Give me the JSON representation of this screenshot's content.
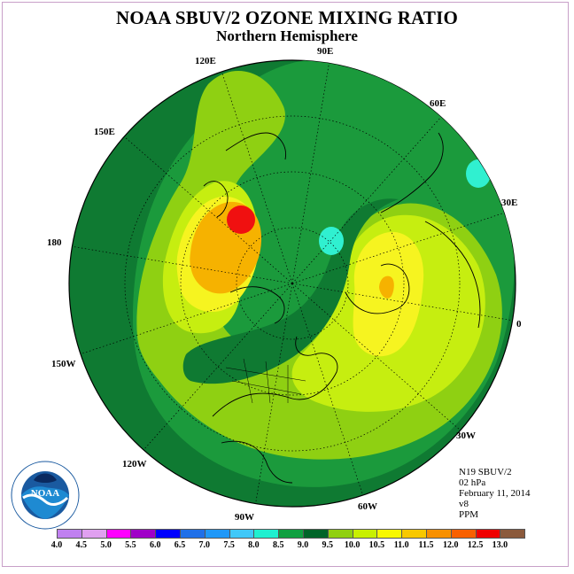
{
  "title": "NOAA SBUV/2 OZONE MIXING RATIO",
  "subtitle": "Northern Hemisphere",
  "longitude_labels": {
    "e120": "120E",
    "e90": "90E",
    "e60": "60E",
    "e150": "150E",
    "e30": "30E",
    "d180": "180",
    "zero": "0",
    "w150": "150W",
    "w30": "30W",
    "w120": "120W",
    "w60": "60W",
    "w90": "90W"
  },
  "info": {
    "satellite": "N19 SBUV/2",
    "level": "02 hPa",
    "date": "February 11, 2014",
    "version": "v8",
    "units": "PPM"
  },
  "colorbar": {
    "ticks": [
      "4.0",
      "4.5",
      "5.0",
      "5.5",
      "6.0",
      "6.5",
      "7.0",
      "7.5",
      "8.0",
      "8.5",
      "9.0",
      "9.5",
      "10.0",
      "10.5",
      "11.0",
      "11.5",
      "12.0",
      "12.5",
      "13.0"
    ],
    "colors": [
      "#c080f0",
      "#e0a0f0",
      "#ff00ff",
      "#a000c8",
      "#0000ff",
      "#2070e8",
      "#2098f8",
      "#40c8f8",
      "#20f0d0",
      "#10a040",
      "#006428",
      "#90d010",
      "#c8f000",
      "#f8f800",
      "#f8c800",
      "#f89000",
      "#f86000",
      "#f00000",
      "#8b5a3c"
    ]
  },
  "map_colors": {
    "ocean_dark": "#0f7a32",
    "mid_green": "#1b9a3c",
    "yellow_green": "#8fd012",
    "lime": "#c6ee10",
    "yellow": "#f6f420",
    "orange": "#f6b200",
    "red": "#f01010",
    "cyan": "#30f0d0"
  },
  "logo": {
    "text": "NOAA"
  }
}
